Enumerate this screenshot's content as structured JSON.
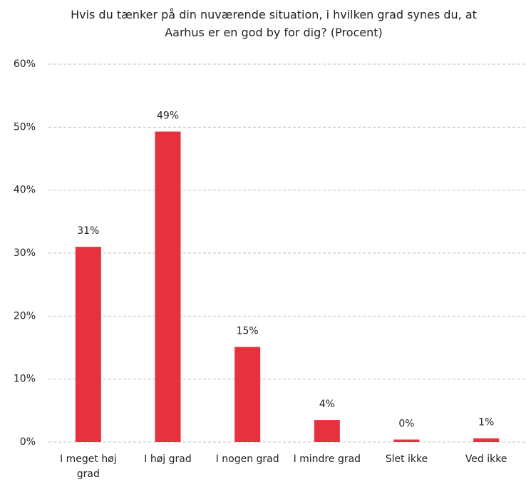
{
  "chart_data": {
    "type": "bar",
    "title": "Hvis du tænker på din nuværende situation, i hvilken grad synes du, at Aarhus er en god by for dig? (Procent)",
    "categories": [
      "I meget høj grad",
      "I høj grad",
      "I nogen grad",
      "I mindre grad",
      "Slet ikke",
      "Ved ikke"
    ],
    "values": [
      31.0,
      49.3,
      15.1,
      3.5,
      0.4,
      0.6
    ],
    "value_labels": [
      "31%",
      "49%",
      "15%",
      "4%",
      "0%",
      "1%"
    ],
    "color": "#e5323e",
    "ylim": [
      0,
      60
    ],
    "yticks": [
      {
        "value": 0,
        "label": "0%"
      },
      {
        "value": 10,
        "label": "10%"
      },
      {
        "value": 20,
        "label": "20%"
      },
      {
        "value": 30,
        "label": "30%"
      },
      {
        "value": 40,
        "label": "40%"
      },
      {
        "value": 50,
        "label": "50%"
      },
      {
        "value": 60,
        "label": "60%"
      }
    ],
    "grid": true
  }
}
